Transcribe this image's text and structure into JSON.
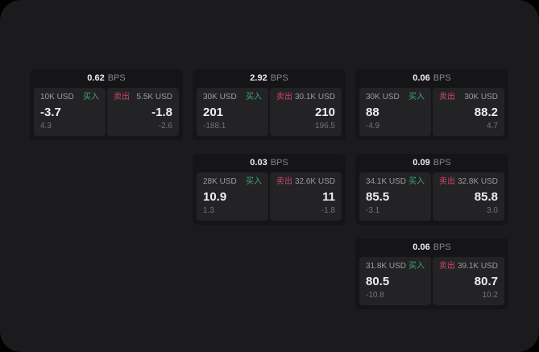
{
  "labels": {
    "bps_unit": "BPS",
    "buy": "买入",
    "sell": "卖出"
  },
  "colors": {
    "buy": "#3da673",
    "sell": "#cd4a66",
    "page_bg": "#1b1b1d",
    "card_bg": "#151517",
    "tile_bg": "#232326"
  },
  "cards": [
    {
      "bps": "0.62",
      "buy": {
        "size": "10K USD",
        "price": "-3.7",
        "delta": "4.3"
      },
      "sell": {
        "size": "5.5K USD",
        "price": "-1.8",
        "delta": "-2.6"
      }
    },
    {
      "bps": "2.92",
      "buy": {
        "size": "30K USD",
        "price": "201",
        "delta": "-188.1"
      },
      "sell": {
        "size": "30.1K USD",
        "price": "210",
        "delta": "196.5"
      }
    },
    {
      "bps": "0.06",
      "buy": {
        "size": "30K USD",
        "price": "88",
        "delta": "-4.9"
      },
      "sell": {
        "size": "30K USD",
        "price": "88.2",
        "delta": "4.7"
      }
    },
    {
      "bps": "0.03",
      "buy": {
        "size": "28K USD",
        "price": "10.9",
        "delta": "1.3"
      },
      "sell": {
        "size": "32.6K USD",
        "price": "11",
        "delta": "-1.8"
      }
    },
    {
      "bps": "0.09",
      "buy": {
        "size": "34.1K USD",
        "price": "85.5",
        "delta": "-3.1"
      },
      "sell": {
        "size": "32.8K USD",
        "price": "85.8",
        "delta": "3.0"
      }
    },
    {
      "bps": "0.06",
      "buy": {
        "size": "31.8K USD",
        "price": "80.5",
        "delta": "-10.8"
      },
      "sell": {
        "size": "39.1K USD",
        "price": "80.7",
        "delta": "10.2"
      }
    }
  ]
}
